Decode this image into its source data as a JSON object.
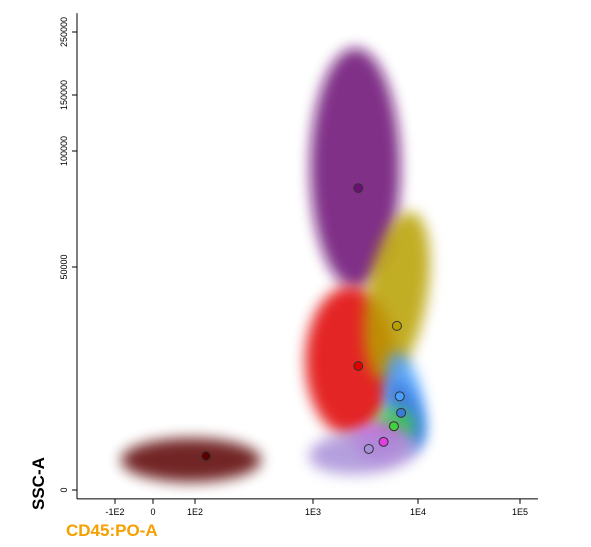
{
  "chart_data": {
    "type": "scatter",
    "x_label": "CD45:PO-A",
    "y_label": "SSC-A",
    "x_scale": "biexponential",
    "y_scale": "biexponential",
    "xlim": [
      -200,
      150000
    ],
    "ylim": [
      -2000,
      280000
    ],
    "xticks": [
      {
        "value": -100,
        "label": "-1E2"
      },
      0,
      {
        "value": 100,
        "label": "1E2"
      },
      {
        "value": 1000,
        "label": "1E3"
      },
      {
        "value": 10000,
        "label": "1E4"
      },
      {
        "value": 100000,
        "label": "1E5"
      }
    ],
    "yticks": [
      0,
      50000,
      100000,
      150000,
      250000
    ],
    "series": [
      {
        "color": "#6a0f73",
        "x": [
          2700
        ],
        "values": [
          84000
        ]
      },
      {
        "color": "#e00000",
        "x": [
          2700
        ],
        "values": [
          27800
        ]
      },
      {
        "color": "#b8a000",
        "x": [
          6300
        ],
        "values": [
          36800
        ]
      },
      {
        "color": "#4aa0ff",
        "x": [
          6700
        ],
        "values": [
          21000
        ]
      },
      {
        "color": "#3b7ad9",
        "x": [
          6900
        ],
        "values": [
          17300
        ]
      },
      {
        "color": "#40d040",
        "x": [
          5900
        ],
        "values": [
          14300
        ]
      },
      {
        "color": "#e040e0",
        "x": [
          4700
        ],
        "values": [
          10800
        ]
      },
      {
        "color": "#a890d8",
        "x": [
          3400
        ],
        "values": [
          9200
        ]
      },
      {
        "color": "#5a0000",
        "x": [
          124
        ],
        "values": [
          7600
        ]
      }
    ]
  }
}
